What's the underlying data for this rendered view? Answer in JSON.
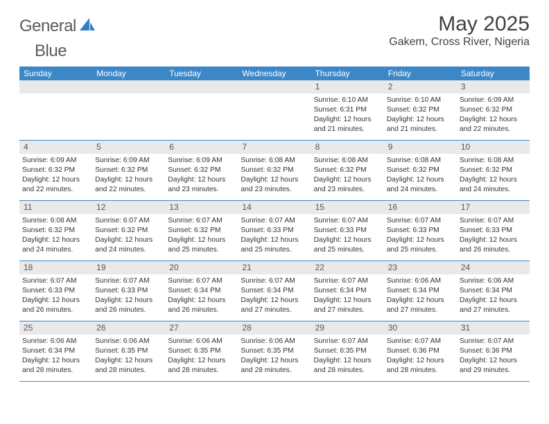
{
  "logo": {
    "textGray": "General",
    "textBlue": "Blue",
    "shapeColor": "#2f7fc2"
  },
  "header": {
    "title": "May 2025",
    "location": "Gakem, Cross River, Nigeria"
  },
  "colors": {
    "headerBar": "#3c87c7",
    "dayNumBg": "#e9e9e9",
    "rowBorder": "#3c87c7",
    "text": "#333333"
  },
  "weekdays": [
    "Sunday",
    "Monday",
    "Tuesday",
    "Wednesday",
    "Thursday",
    "Friday",
    "Saturday"
  ],
  "weeks": [
    [
      {
        "num": "",
        "sunrise": "",
        "sunset": "",
        "daylight": ""
      },
      {
        "num": "",
        "sunrise": "",
        "sunset": "",
        "daylight": ""
      },
      {
        "num": "",
        "sunrise": "",
        "sunset": "",
        "daylight": ""
      },
      {
        "num": "",
        "sunrise": "",
        "sunset": "",
        "daylight": ""
      },
      {
        "num": "1",
        "sunrise": "Sunrise: 6:10 AM",
        "sunset": "Sunset: 6:31 PM",
        "daylight": "Daylight: 12 hours and 21 minutes."
      },
      {
        "num": "2",
        "sunrise": "Sunrise: 6:10 AM",
        "sunset": "Sunset: 6:32 PM",
        "daylight": "Daylight: 12 hours and 21 minutes."
      },
      {
        "num": "3",
        "sunrise": "Sunrise: 6:09 AM",
        "sunset": "Sunset: 6:32 PM",
        "daylight": "Daylight: 12 hours and 22 minutes."
      }
    ],
    [
      {
        "num": "4",
        "sunrise": "Sunrise: 6:09 AM",
        "sunset": "Sunset: 6:32 PM",
        "daylight": "Daylight: 12 hours and 22 minutes."
      },
      {
        "num": "5",
        "sunrise": "Sunrise: 6:09 AM",
        "sunset": "Sunset: 6:32 PM",
        "daylight": "Daylight: 12 hours and 22 minutes."
      },
      {
        "num": "6",
        "sunrise": "Sunrise: 6:09 AM",
        "sunset": "Sunset: 6:32 PM",
        "daylight": "Daylight: 12 hours and 23 minutes."
      },
      {
        "num": "7",
        "sunrise": "Sunrise: 6:08 AM",
        "sunset": "Sunset: 6:32 PM",
        "daylight": "Daylight: 12 hours and 23 minutes."
      },
      {
        "num": "8",
        "sunrise": "Sunrise: 6:08 AM",
        "sunset": "Sunset: 6:32 PM",
        "daylight": "Daylight: 12 hours and 23 minutes."
      },
      {
        "num": "9",
        "sunrise": "Sunrise: 6:08 AM",
        "sunset": "Sunset: 6:32 PM",
        "daylight": "Daylight: 12 hours and 24 minutes."
      },
      {
        "num": "10",
        "sunrise": "Sunrise: 6:08 AM",
        "sunset": "Sunset: 6:32 PM",
        "daylight": "Daylight: 12 hours and 24 minutes."
      }
    ],
    [
      {
        "num": "11",
        "sunrise": "Sunrise: 6:08 AM",
        "sunset": "Sunset: 6:32 PM",
        "daylight": "Daylight: 12 hours and 24 minutes."
      },
      {
        "num": "12",
        "sunrise": "Sunrise: 6:07 AM",
        "sunset": "Sunset: 6:32 PM",
        "daylight": "Daylight: 12 hours and 24 minutes."
      },
      {
        "num": "13",
        "sunrise": "Sunrise: 6:07 AM",
        "sunset": "Sunset: 6:32 PM",
        "daylight": "Daylight: 12 hours and 25 minutes."
      },
      {
        "num": "14",
        "sunrise": "Sunrise: 6:07 AM",
        "sunset": "Sunset: 6:33 PM",
        "daylight": "Daylight: 12 hours and 25 minutes."
      },
      {
        "num": "15",
        "sunrise": "Sunrise: 6:07 AM",
        "sunset": "Sunset: 6:33 PM",
        "daylight": "Daylight: 12 hours and 25 minutes."
      },
      {
        "num": "16",
        "sunrise": "Sunrise: 6:07 AM",
        "sunset": "Sunset: 6:33 PM",
        "daylight": "Daylight: 12 hours and 25 minutes."
      },
      {
        "num": "17",
        "sunrise": "Sunrise: 6:07 AM",
        "sunset": "Sunset: 6:33 PM",
        "daylight": "Daylight: 12 hours and 26 minutes."
      }
    ],
    [
      {
        "num": "18",
        "sunrise": "Sunrise: 6:07 AM",
        "sunset": "Sunset: 6:33 PM",
        "daylight": "Daylight: 12 hours and 26 minutes."
      },
      {
        "num": "19",
        "sunrise": "Sunrise: 6:07 AM",
        "sunset": "Sunset: 6:33 PM",
        "daylight": "Daylight: 12 hours and 26 minutes."
      },
      {
        "num": "20",
        "sunrise": "Sunrise: 6:07 AM",
        "sunset": "Sunset: 6:34 PM",
        "daylight": "Daylight: 12 hours and 26 minutes."
      },
      {
        "num": "21",
        "sunrise": "Sunrise: 6:07 AM",
        "sunset": "Sunset: 6:34 PM",
        "daylight": "Daylight: 12 hours and 27 minutes."
      },
      {
        "num": "22",
        "sunrise": "Sunrise: 6:07 AM",
        "sunset": "Sunset: 6:34 PM",
        "daylight": "Daylight: 12 hours and 27 minutes."
      },
      {
        "num": "23",
        "sunrise": "Sunrise: 6:06 AM",
        "sunset": "Sunset: 6:34 PM",
        "daylight": "Daylight: 12 hours and 27 minutes."
      },
      {
        "num": "24",
        "sunrise": "Sunrise: 6:06 AM",
        "sunset": "Sunset: 6:34 PM",
        "daylight": "Daylight: 12 hours and 27 minutes."
      }
    ],
    [
      {
        "num": "25",
        "sunrise": "Sunrise: 6:06 AM",
        "sunset": "Sunset: 6:34 PM",
        "daylight": "Daylight: 12 hours and 28 minutes."
      },
      {
        "num": "26",
        "sunrise": "Sunrise: 6:06 AM",
        "sunset": "Sunset: 6:35 PM",
        "daylight": "Daylight: 12 hours and 28 minutes."
      },
      {
        "num": "27",
        "sunrise": "Sunrise: 6:06 AM",
        "sunset": "Sunset: 6:35 PM",
        "daylight": "Daylight: 12 hours and 28 minutes."
      },
      {
        "num": "28",
        "sunrise": "Sunrise: 6:06 AM",
        "sunset": "Sunset: 6:35 PM",
        "daylight": "Daylight: 12 hours and 28 minutes."
      },
      {
        "num": "29",
        "sunrise": "Sunrise: 6:07 AM",
        "sunset": "Sunset: 6:35 PM",
        "daylight": "Daylight: 12 hours and 28 minutes."
      },
      {
        "num": "30",
        "sunrise": "Sunrise: 6:07 AM",
        "sunset": "Sunset: 6:36 PM",
        "daylight": "Daylight: 12 hours and 28 minutes."
      },
      {
        "num": "31",
        "sunrise": "Sunrise: 6:07 AM",
        "sunset": "Sunset: 6:36 PM",
        "daylight": "Daylight: 12 hours and 29 minutes."
      }
    ]
  ]
}
